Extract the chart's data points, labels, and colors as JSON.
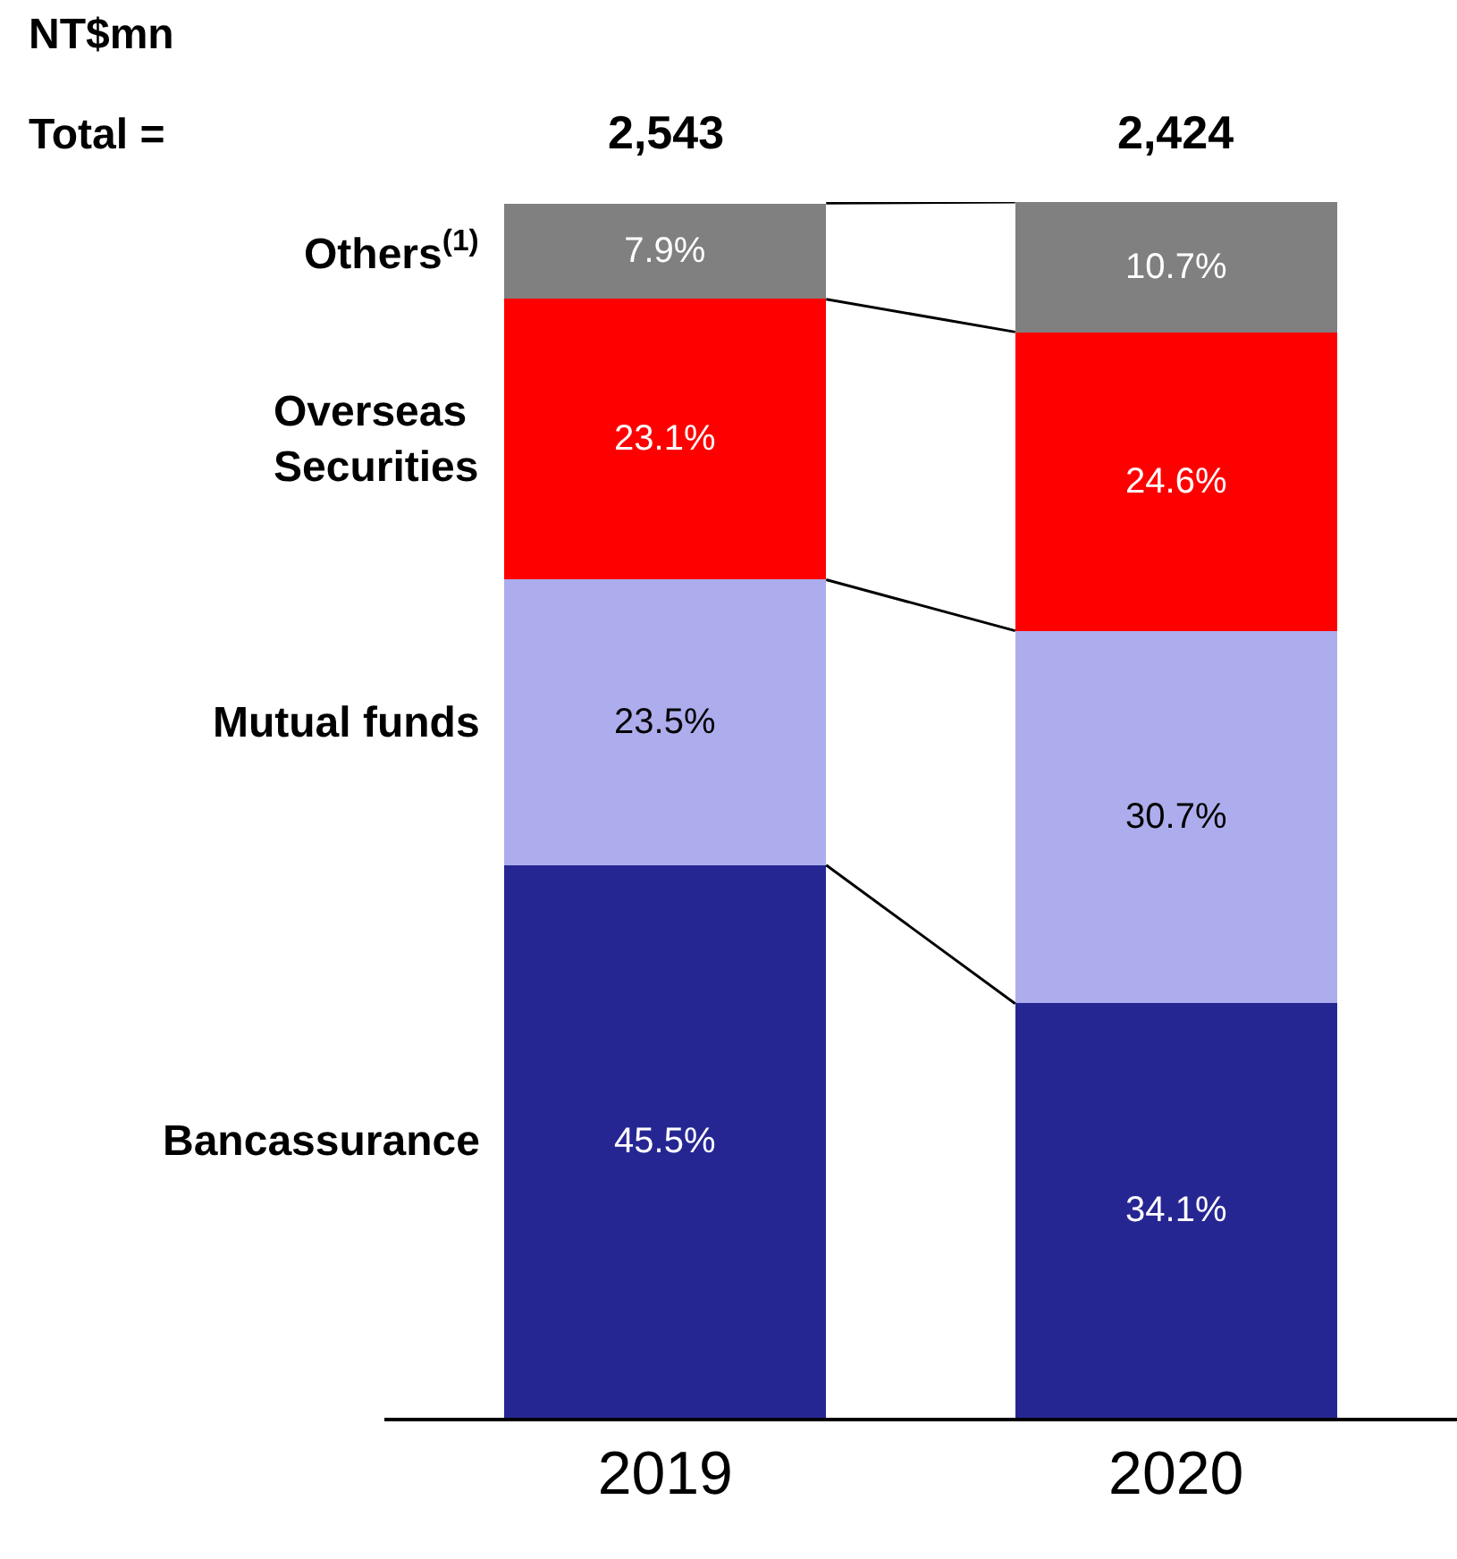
{
  "chart_data": {
    "type": "bar",
    "stacked": true,
    "categories": [
      "2019",
      "2020"
    ],
    "series": [
      {
        "name": "Bancassurance",
        "color": "#262693",
        "values": [
          45.5,
          34.1
        ],
        "value_labels": [
          "45.5%",
          "34.1%"
        ]
      },
      {
        "name": "Mutual funds",
        "color": "#adaded",
        "values": [
          23.5,
          30.7
        ],
        "value_labels": [
          "23.5%",
          "30.7%"
        ]
      },
      {
        "name": "Overseas Securities",
        "color": "#ff0000",
        "values": [
          23.1,
          24.6
        ],
        "value_labels": [
          "23.1%",
          "24.6%"
        ]
      },
      {
        "name": "Others$^{(1)}$",
        "color": "#808080",
        "values": [
          7.9,
          10.7
        ],
        "value_labels": [
          "7.9%",
          "10.7%"
        ]
      }
    ],
    "annotations": [
      "NT$mn",
      "Total =",
      "2,543",
      "2,424"
    ],
    "legend": false
  }
}
